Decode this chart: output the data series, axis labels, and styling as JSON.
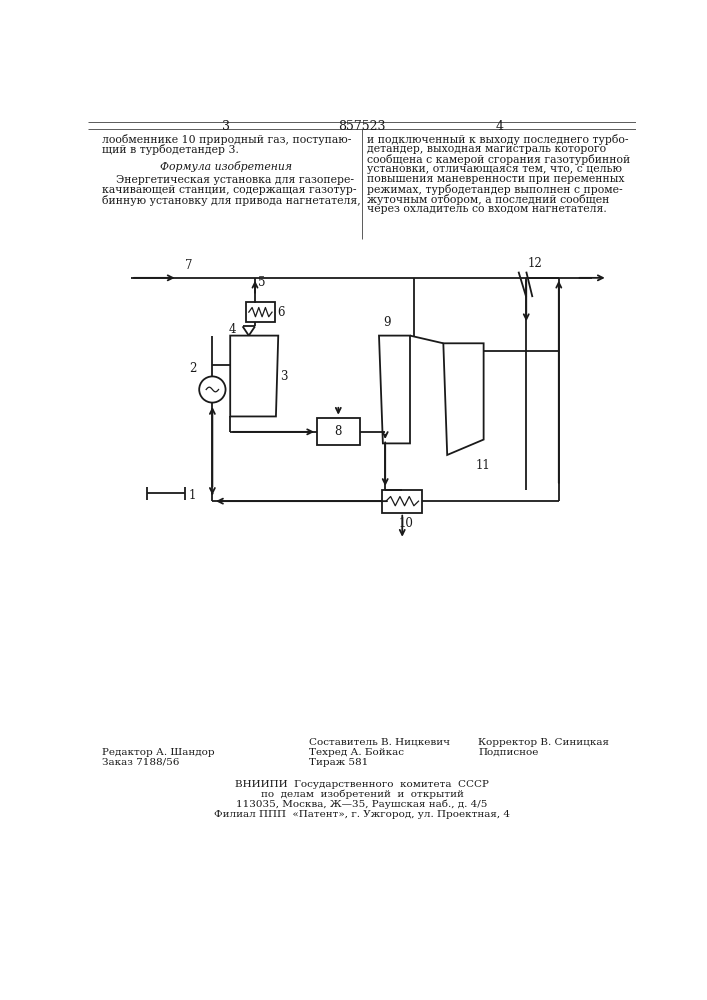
{
  "page_number_left": "3",
  "page_number_center": "857523",
  "page_number_right": "4",
  "text_left_col": [
    "лообменнике 10 природный газ, поступаю-",
    "щий в турбодетандер 3."
  ],
  "formula_title": "Формула изобретения",
  "text_left_formula": [
    "    Энергетическая установка для газопере-",
    "качивающей станции, содержащая газотур-",
    "бинную установку для привода нагнетателя,"
  ],
  "text_right_col": [
    "и подключенный к выходу последнего турбо-",
    "детандер, выходная магистраль которого",
    "сообщена с камерой сгорания газотурбинной",
    "установки, отличающаяся тем, что, с целью",
    "повышения маневренности при переменных",
    "режимах, турбодетандер выполнен с проме-",
    "жуточным отбором, а последний сообщен",
    "через охладитель со входом нагнетателя."
  ],
  "footer_left1": "Редактор А. Шандор",
  "footer_left2": "Заказ 7188/56",
  "footer_center1": "Составитель В. Ницкевич",
  "footer_center2": "Техред А. Бойкас",
  "footer_center3": "Тираж 581",
  "footer_right1": "Корректор В. Синицкая",
  "footer_right2": "Подписное",
  "footer_vniiipi1": "ВНИИПИ  Государственного  комитета  СССР",
  "footer_vniiipi2": "по  делам  изобретений  и  открытий",
  "footer_vniiipi3": "113035, Москва, Ж—35, Раушская наб., д. 4/5",
  "footer_vniiipi4": "Филиал ППП  «Патент», г. Ужгород, ул. Проектная, 4",
  "bg_color": "#ffffff",
  "line_color": "#1a1a1a"
}
